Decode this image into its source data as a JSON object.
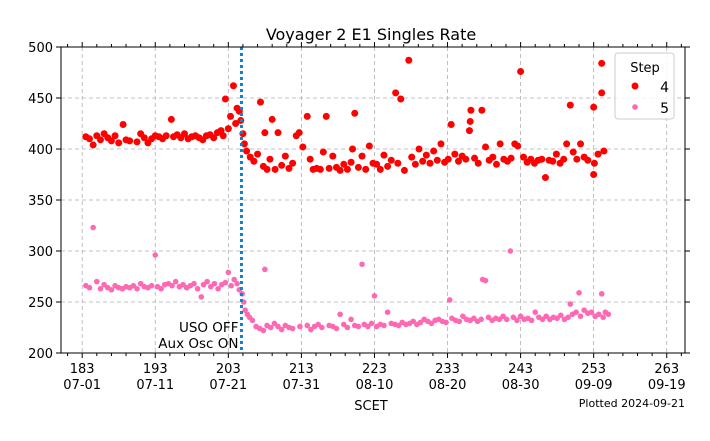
{
  "chart_data": {
    "type": "scatter",
    "title": "Voyager 2 E1 Singles Rate",
    "xlabel": "SCET",
    "ylabel": "",
    "footnote": "Plotted 2024-09-21",
    "xlim": [
      180.1,
      265.5
    ],
    "ylim": [
      200,
      500
    ],
    "grid": true,
    "x_ticks": [
      183,
      193,
      203,
      213,
      223,
      233,
      243,
      253,
      263
    ],
    "x_tick_labels": [
      [
        "183",
        "07-01"
      ],
      [
        "193",
        "07-11"
      ],
      [
        "203",
        "07-21"
      ],
      [
        "213",
        "07-31"
      ],
      [
        "223",
        "08-10"
      ],
      [
        "233",
        "08-20"
      ],
      [
        "243",
        "08-30"
      ],
      [
        "253",
        "09-09"
      ],
      [
        "263",
        "09-19"
      ]
    ],
    "y_ticks": [
      200,
      250,
      300,
      350,
      400,
      450,
      500
    ],
    "legend": {
      "title": "Step",
      "placement": "top-right"
    },
    "event_line": {
      "x": 204.8,
      "color": "#0a84d8",
      "label_lines": [
        "USO OFF",
        "Aux Osc ON"
      ]
    },
    "series": [
      {
        "name": "4",
        "color": "#ff0000",
        "points": [
          [
            183.5,
            412
          ],
          [
            184,
            410
          ],
          [
            184.5,
            404
          ],
          [
            185,
            413
          ],
          [
            185.5,
            409
          ],
          [
            186,
            415
          ],
          [
            186.5,
            411
          ],
          [
            187,
            408
          ],
          [
            187.5,
            413
          ],
          [
            188,
            406
          ],
          [
            188.6,
            424
          ],
          [
            189,
            409
          ],
          [
            189.5,
            408
          ],
          [
            190.5,
            407
          ],
          [
            191,
            415
          ],
          [
            191.5,
            411
          ],
          [
            192,
            406
          ],
          [
            192.5,
            410
          ],
          [
            193,
            413
          ],
          [
            193.5,
            412
          ],
          [
            194,
            410
          ],
          [
            194.5,
            413
          ],
          [
            195.2,
            429
          ],
          [
            195.5,
            412
          ],
          [
            196,
            414
          ],
          [
            196.5,
            411
          ],
          [
            197,
            415
          ],
          [
            197.5,
            410
          ],
          [
            198,
            412
          ],
          [
            198.5,
            413
          ],
          [
            199,
            411
          ],
          [
            199.5,
            409
          ],
          [
            200,
            413
          ],
          [
            200.5,
            414
          ],
          [
            201,
            411
          ],
          [
            201.5,
            416
          ],
          [
            202,
            418
          ],
          [
            202.3,
            413
          ],
          [
            202.6,
            449
          ],
          [
            203,
            420
          ],
          [
            203.3,
            432
          ],
          [
            203.7,
            462
          ],
          [
            204,
            425
          ],
          [
            204.2,
            440
          ],
          [
            204.5,
            437
          ],
          [
            204.7,
            428
          ],
          [
            205,
            415
          ],
          [
            205.2,
            405
          ],
          [
            205.5,
            398
          ],
          [
            206,
            392
          ],
          [
            206.5,
            388
          ],
          [
            207,
            395
          ],
          [
            207.4,
            446
          ],
          [
            207.8,
            383
          ],
          [
            208,
            416
          ],
          [
            208.3,
            380
          ],
          [
            208.7,
            390
          ],
          [
            209,
            429
          ],
          [
            209.4,
            380
          ],
          [
            209.8,
            416
          ],
          [
            210.3,
            384
          ],
          [
            210.8,
            393
          ],
          [
            211.3,
            381
          ],
          [
            211.8,
            386
          ],
          [
            212.3,
            413
          ],
          [
            212.7,
            416
          ],
          [
            213.2,
            402
          ],
          [
            213.8,
            432
          ],
          [
            214.2,
            390
          ],
          [
            214.6,
            380
          ],
          [
            215.1,
            381
          ],
          [
            215.6,
            380
          ],
          [
            216,
            397
          ],
          [
            216.4,
            432
          ],
          [
            216.8,
            381
          ],
          [
            217.3,
            393
          ],
          [
            217.8,
            382
          ],
          [
            218.3,
            379
          ],
          [
            218.8,
            385
          ],
          [
            219.3,
            380
          ],
          [
            219.8,
            387
          ],
          [
            220,
            400
          ],
          [
            220.3,
            435
          ],
          [
            220.8,
            382
          ],
          [
            221.3,
            393
          ],
          [
            221.8,
            380
          ],
          [
            222.3,
            403
          ],
          [
            222.8,
            386
          ],
          [
            223.3,
            385
          ],
          [
            223.8,
            380
          ],
          [
            224.3,
            394
          ],
          [
            224.8,
            383
          ],
          [
            225.3,
            389
          ],
          [
            225.9,
            455
          ],
          [
            226.2,
            386
          ],
          [
            226.6,
            449
          ],
          [
            227.1,
            379
          ],
          [
            227.7,
            487
          ],
          [
            228.1,
            392
          ],
          [
            228.6,
            385
          ],
          [
            229.1,
            400
          ],
          [
            229.6,
            388
          ],
          [
            230.1,
            394
          ],
          [
            230.6,
            386
          ],
          [
            231.1,
            398
          ],
          [
            231.6,
            389
          ],
          [
            232.1,
            405
          ],
          [
            232.6,
            387
          ],
          [
            233.1,
            390
          ],
          [
            233.5,
            424
          ],
          [
            234,
            395
          ],
          [
            234.5,
            388
          ],
          [
            235,
            393
          ],
          [
            235.5,
            390
          ],
          [
            236,
            418
          ],
          [
            236.1,
            427
          ],
          [
            236.2,
            438
          ],
          [
            236.7,
            391
          ],
          [
            237.2,
            386
          ],
          [
            237.7,
            438
          ],
          [
            238.2,
            402
          ],
          [
            238.7,
            389
          ],
          [
            239.2,
            392
          ],
          [
            239.7,
            385
          ],
          [
            240.2,
            405
          ],
          [
            240.7,
            390
          ],
          [
            241.2,
            388
          ],
          [
            241.7,
            391
          ],
          [
            242.2,
            405
          ],
          [
            242.6,
            403
          ],
          [
            243,
            476
          ],
          [
            243.4,
            392
          ],
          [
            243.9,
            387
          ],
          [
            244.4,
            390
          ],
          [
            244.9,
            386
          ],
          [
            245.4,
            389
          ],
          [
            245.9,
            390
          ],
          [
            246.4,
            372
          ],
          [
            246.9,
            389
          ],
          [
            247.4,
            388
          ],
          [
            247.9,
            395
          ],
          [
            248.4,
            386
          ],
          [
            248.9,
            390
          ],
          [
            249.3,
            405
          ],
          [
            249.8,
            443
          ],
          [
            250.2,
            397
          ],
          [
            250.7,
            390
          ],
          [
            251.2,
            405
          ],
          [
            251.7,
            392
          ],
          [
            252.2,
            389
          ],
          [
            253,
            375
          ],
          [
            253.1,
            386
          ],
          [
            253,
            441
          ],
          [
            253.6,
            395
          ],
          [
            254.1,
            484
          ],
          [
            254.1,
            455
          ],
          [
            254.4,
            398
          ]
        ]
      },
      {
        "name": "5",
        "color": "#ff69b4",
        "points": [
          [
            183.5,
            266
          ],
          [
            184,
            264
          ],
          [
            184.5,
            323
          ],
          [
            185,
            270
          ],
          [
            185.5,
            263
          ],
          [
            186,
            267
          ],
          [
            186.5,
            264
          ],
          [
            187,
            262
          ],
          [
            187.5,
            266
          ],
          [
            188,
            264
          ],
          [
            188.5,
            263
          ],
          [
            189,
            265
          ],
          [
            189.5,
            264
          ],
          [
            190,
            266
          ],
          [
            190.5,
            263
          ],
          [
            191,
            268
          ],
          [
            191.5,
            265
          ],
          [
            192,
            264
          ],
          [
            192.5,
            266
          ],
          [
            193,
            296
          ],
          [
            193.3,
            265
          ],
          [
            193.8,
            263
          ],
          [
            194.3,
            267
          ],
          [
            194.8,
            268
          ],
          [
            195.3,
            266
          ],
          [
            195.8,
            270
          ],
          [
            196.3,
            265
          ],
          [
            196.8,
            267
          ],
          [
            197.3,
            264
          ],
          [
            197.8,
            266
          ],
          [
            198.3,
            268
          ],
          [
            198.8,
            263
          ],
          [
            199.3,
            255
          ],
          [
            199.6,
            267
          ],
          [
            200.1,
            270
          ],
          [
            200.6,
            265
          ],
          [
            201.1,
            268
          ],
          [
            201.6,
            263
          ],
          [
            202.1,
            267
          ],
          [
            202.6,
            269
          ],
          [
            203,
            279
          ],
          [
            203.4,
            266
          ],
          [
            203.8,
            272
          ],
          [
            204.2,
            268
          ],
          [
            204.5,
            262
          ],
          [
            204.9,
            258
          ],
          [
            205.1,
            250
          ],
          [
            205.3,
            242
          ],
          [
            205.6,
            238
          ],
          [
            205.9,
            235
          ],
          [
            206.3,
            232
          ],
          [
            206.8,
            226
          ],
          [
            207.3,
            224
          ],
          [
            207.8,
            222
          ],
          [
            208,
            282
          ],
          [
            208.3,
            227
          ],
          [
            208.8,
            225
          ],
          [
            209.3,
            229
          ],
          [
            209.8,
            226
          ],
          [
            210.3,
            223
          ],
          [
            210.8,
            227
          ],
          [
            211.3,
            225
          ],
          [
            211.8,
            224
          ],
          [
            212.8,
            226
          ],
          [
            213.8,
            227
          ],
          [
            214.3,
            223
          ],
          [
            214.8,
            226
          ],
          [
            215.3,
            228
          ],
          [
            215.8,
            225
          ],
          [
            216.8,
            227
          ],
          [
            217.3,
            226
          ],
          [
            217.8,
            224
          ],
          [
            218.3,
            238
          ],
          [
            218.8,
            228
          ],
          [
            219.3,
            225
          ],
          [
            219.8,
            233
          ],
          [
            220.3,
            227
          ],
          [
            220.8,
            226
          ],
          [
            221.3,
            287
          ],
          [
            221.6,
            228
          ],
          [
            222.1,
            226
          ],
          [
            222.6,
            229
          ],
          [
            223,
            256
          ],
          [
            223.3,
            226
          ],
          [
            223.8,
            228
          ],
          [
            224.3,
            227
          ],
          [
            224.8,
            240
          ],
          [
            225.3,
            229
          ],
          [
            225.8,
            228
          ],
          [
            226.3,
            227
          ],
          [
            226.8,
            230
          ],
          [
            227.3,
            228
          ],
          [
            227.8,
            229
          ],
          [
            228.3,
            231
          ],
          [
            228.8,
            228
          ],
          [
            229.3,
            230
          ],
          [
            229.8,
            233
          ],
          [
            230.3,
            231
          ],
          [
            230.8,
            229
          ],
          [
            231.3,
            232
          ],
          [
            231.8,
            233
          ],
          [
            232.3,
            231
          ],
          [
            232.8,
            230
          ],
          [
            233.3,
            252
          ],
          [
            233.6,
            234
          ],
          [
            234.1,
            232
          ],
          [
            234.6,
            231
          ],
          [
            235.1,
            236
          ],
          [
            235.6,
            233
          ],
          [
            236.1,
            232
          ],
          [
            236.6,
            234
          ],
          [
            237.1,
            231
          ],
          [
            237.6,
            233
          ],
          [
            237.8,
            272
          ],
          [
            238.2,
            271
          ],
          [
            238.6,
            235
          ],
          [
            239.1,
            232
          ],
          [
            239.6,
            234
          ],
          [
            240.1,
            233
          ],
          [
            240.6,
            236
          ],
          [
            241.1,
            233
          ],
          [
            241.6,
            300
          ],
          [
            242,
            235
          ],
          [
            242.5,
            232
          ],
          [
            243,
            236
          ],
          [
            243.5,
            233
          ],
          [
            244,
            234
          ],
          [
            244.5,
            232
          ],
          [
            245,
            240
          ],
          [
            245.5,
            235
          ],
          [
            246,
            233
          ],
          [
            246.5,
            236
          ],
          [
            247,
            233
          ],
          [
            247.5,
            235
          ],
          [
            248,
            234
          ],
          [
            248.5,
            237
          ],
          [
            249,
            233
          ],
          [
            249.5,
            235
          ],
          [
            249.8,
            248
          ],
          [
            250.1,
            238
          ],
          [
            250.6,
            240
          ],
          [
            251,
            259
          ],
          [
            251.2,
            236
          ],
          [
            251.7,
            242
          ],
          [
            252.2,
            239
          ],
          [
            252.7,
            240
          ],
          [
            253.2,
            236
          ],
          [
            253.7,
            238
          ],
          [
            254.1,
            258
          ],
          [
            254.3,
            235
          ],
          [
            254.6,
            240
          ],
          [
            255,
            238
          ]
        ]
      }
    ]
  }
}
